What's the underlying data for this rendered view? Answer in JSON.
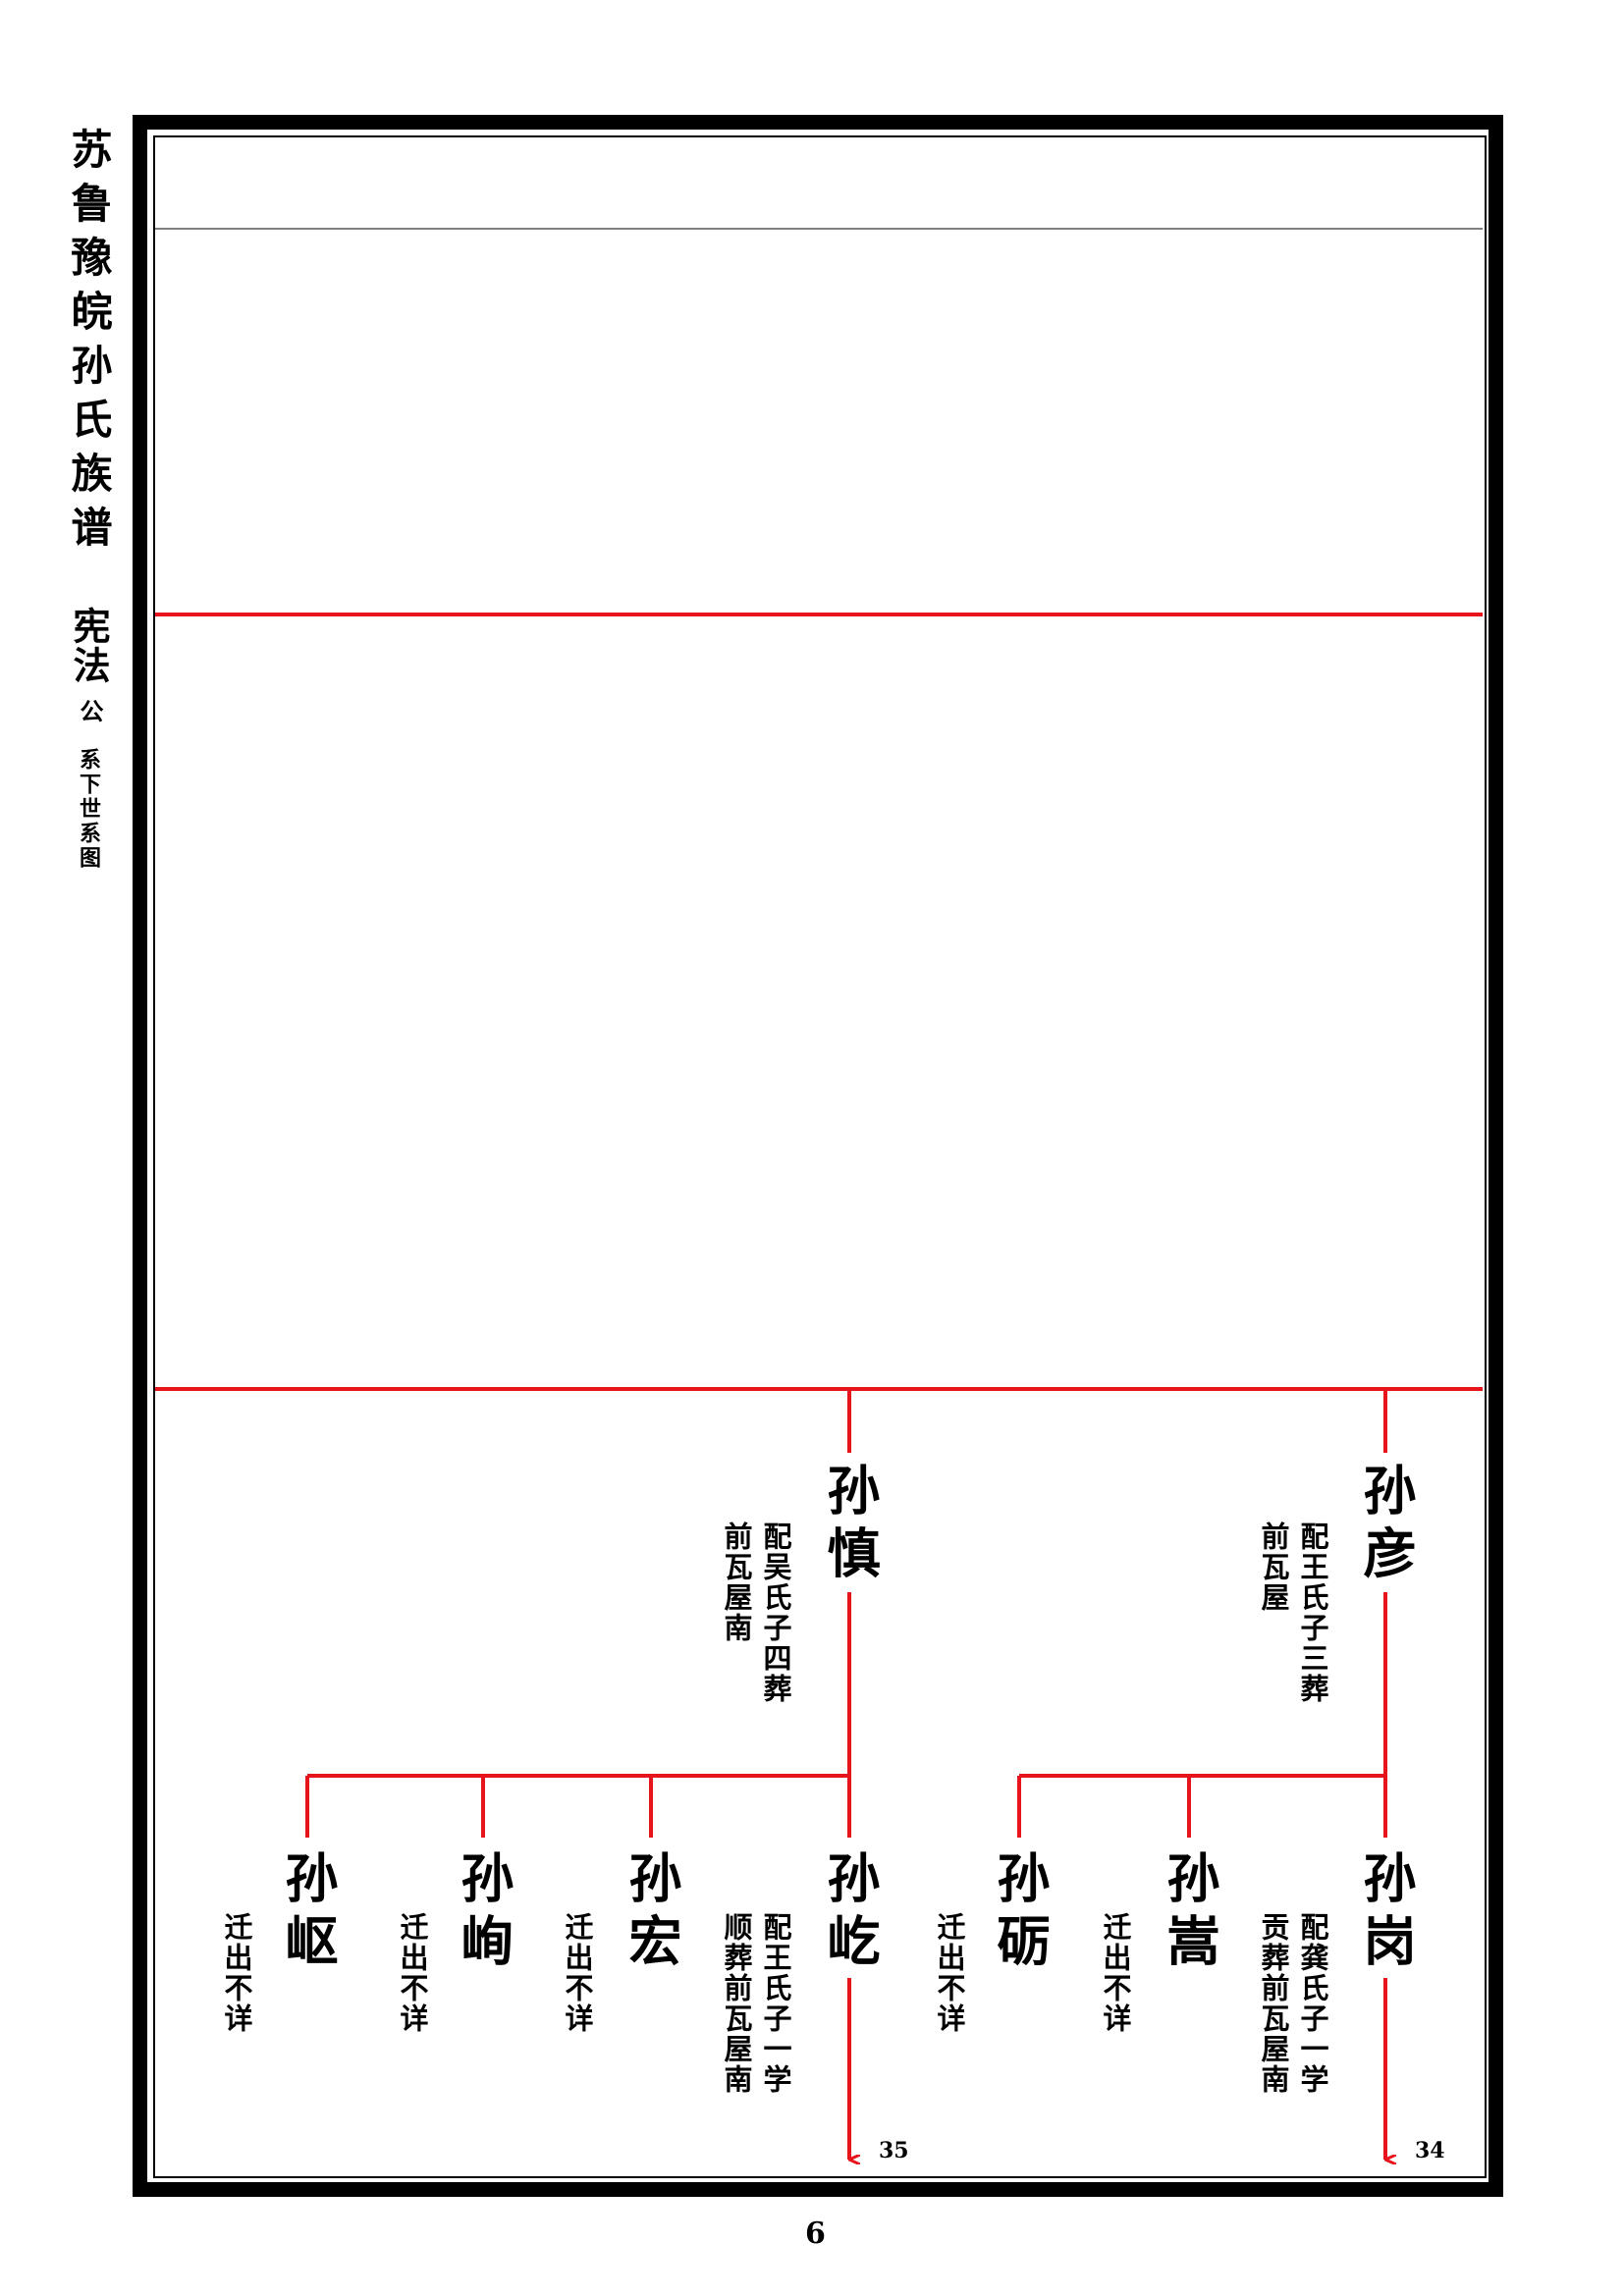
{
  "sidebar": {
    "title": "苏鲁豫皖孙氏族谱",
    "ancestor": "宪法",
    "honorific": "公",
    "subtitle": "系下世系图"
  },
  "colors": {
    "line": "#e8141c",
    "border": "#000000",
    "divider": "#808080"
  },
  "tree": {
    "parents": [
      {
        "name": "孙慎",
        "notes": [
          "配吴氏子四葬",
          "前瓦屋南"
        ]
      },
      {
        "name": "孙彦",
        "notes": [
          "配王氏子三葬",
          "前瓦屋"
        ]
      }
    ],
    "children": [
      {
        "name": "孙岖",
        "notes": [
          "迁出不详"
        ]
      },
      {
        "name": "孙峋",
        "notes": [
          "迁出不详"
        ]
      },
      {
        "name": "孙宏",
        "notes": [
          "迁出不详"
        ]
      },
      {
        "name": "孙屹",
        "notes": [
          "配王氏子一学",
          "顺葬前瓦屋南"
        ],
        "continues_page": "35"
      },
      {
        "name": "孙砺",
        "notes": [
          "迁出不详"
        ]
      },
      {
        "name": "孙嵩",
        "notes": [
          "迁出不详"
        ]
      },
      {
        "name": "孙岗",
        "notes": [
          "配龚氏子一学",
          "贡葬前瓦屋南"
        ],
        "continues_page": "34"
      }
    ]
  },
  "page_number": "6"
}
